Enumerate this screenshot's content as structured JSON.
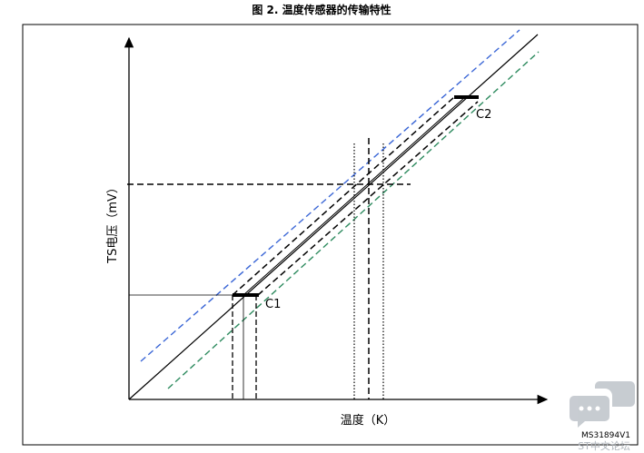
{
  "title": "图 2. 温度传感器的传输特性",
  "y_axis": {
    "label": "TS电压（mV）"
  },
  "x_axis": {
    "label": "温度（K）"
  },
  "points": [
    {
      "label": "C1"
    },
    {
      "label": "C2"
    }
  ],
  "figure_id": "MS31894V1",
  "watermark": "ST中文论坛"
}
